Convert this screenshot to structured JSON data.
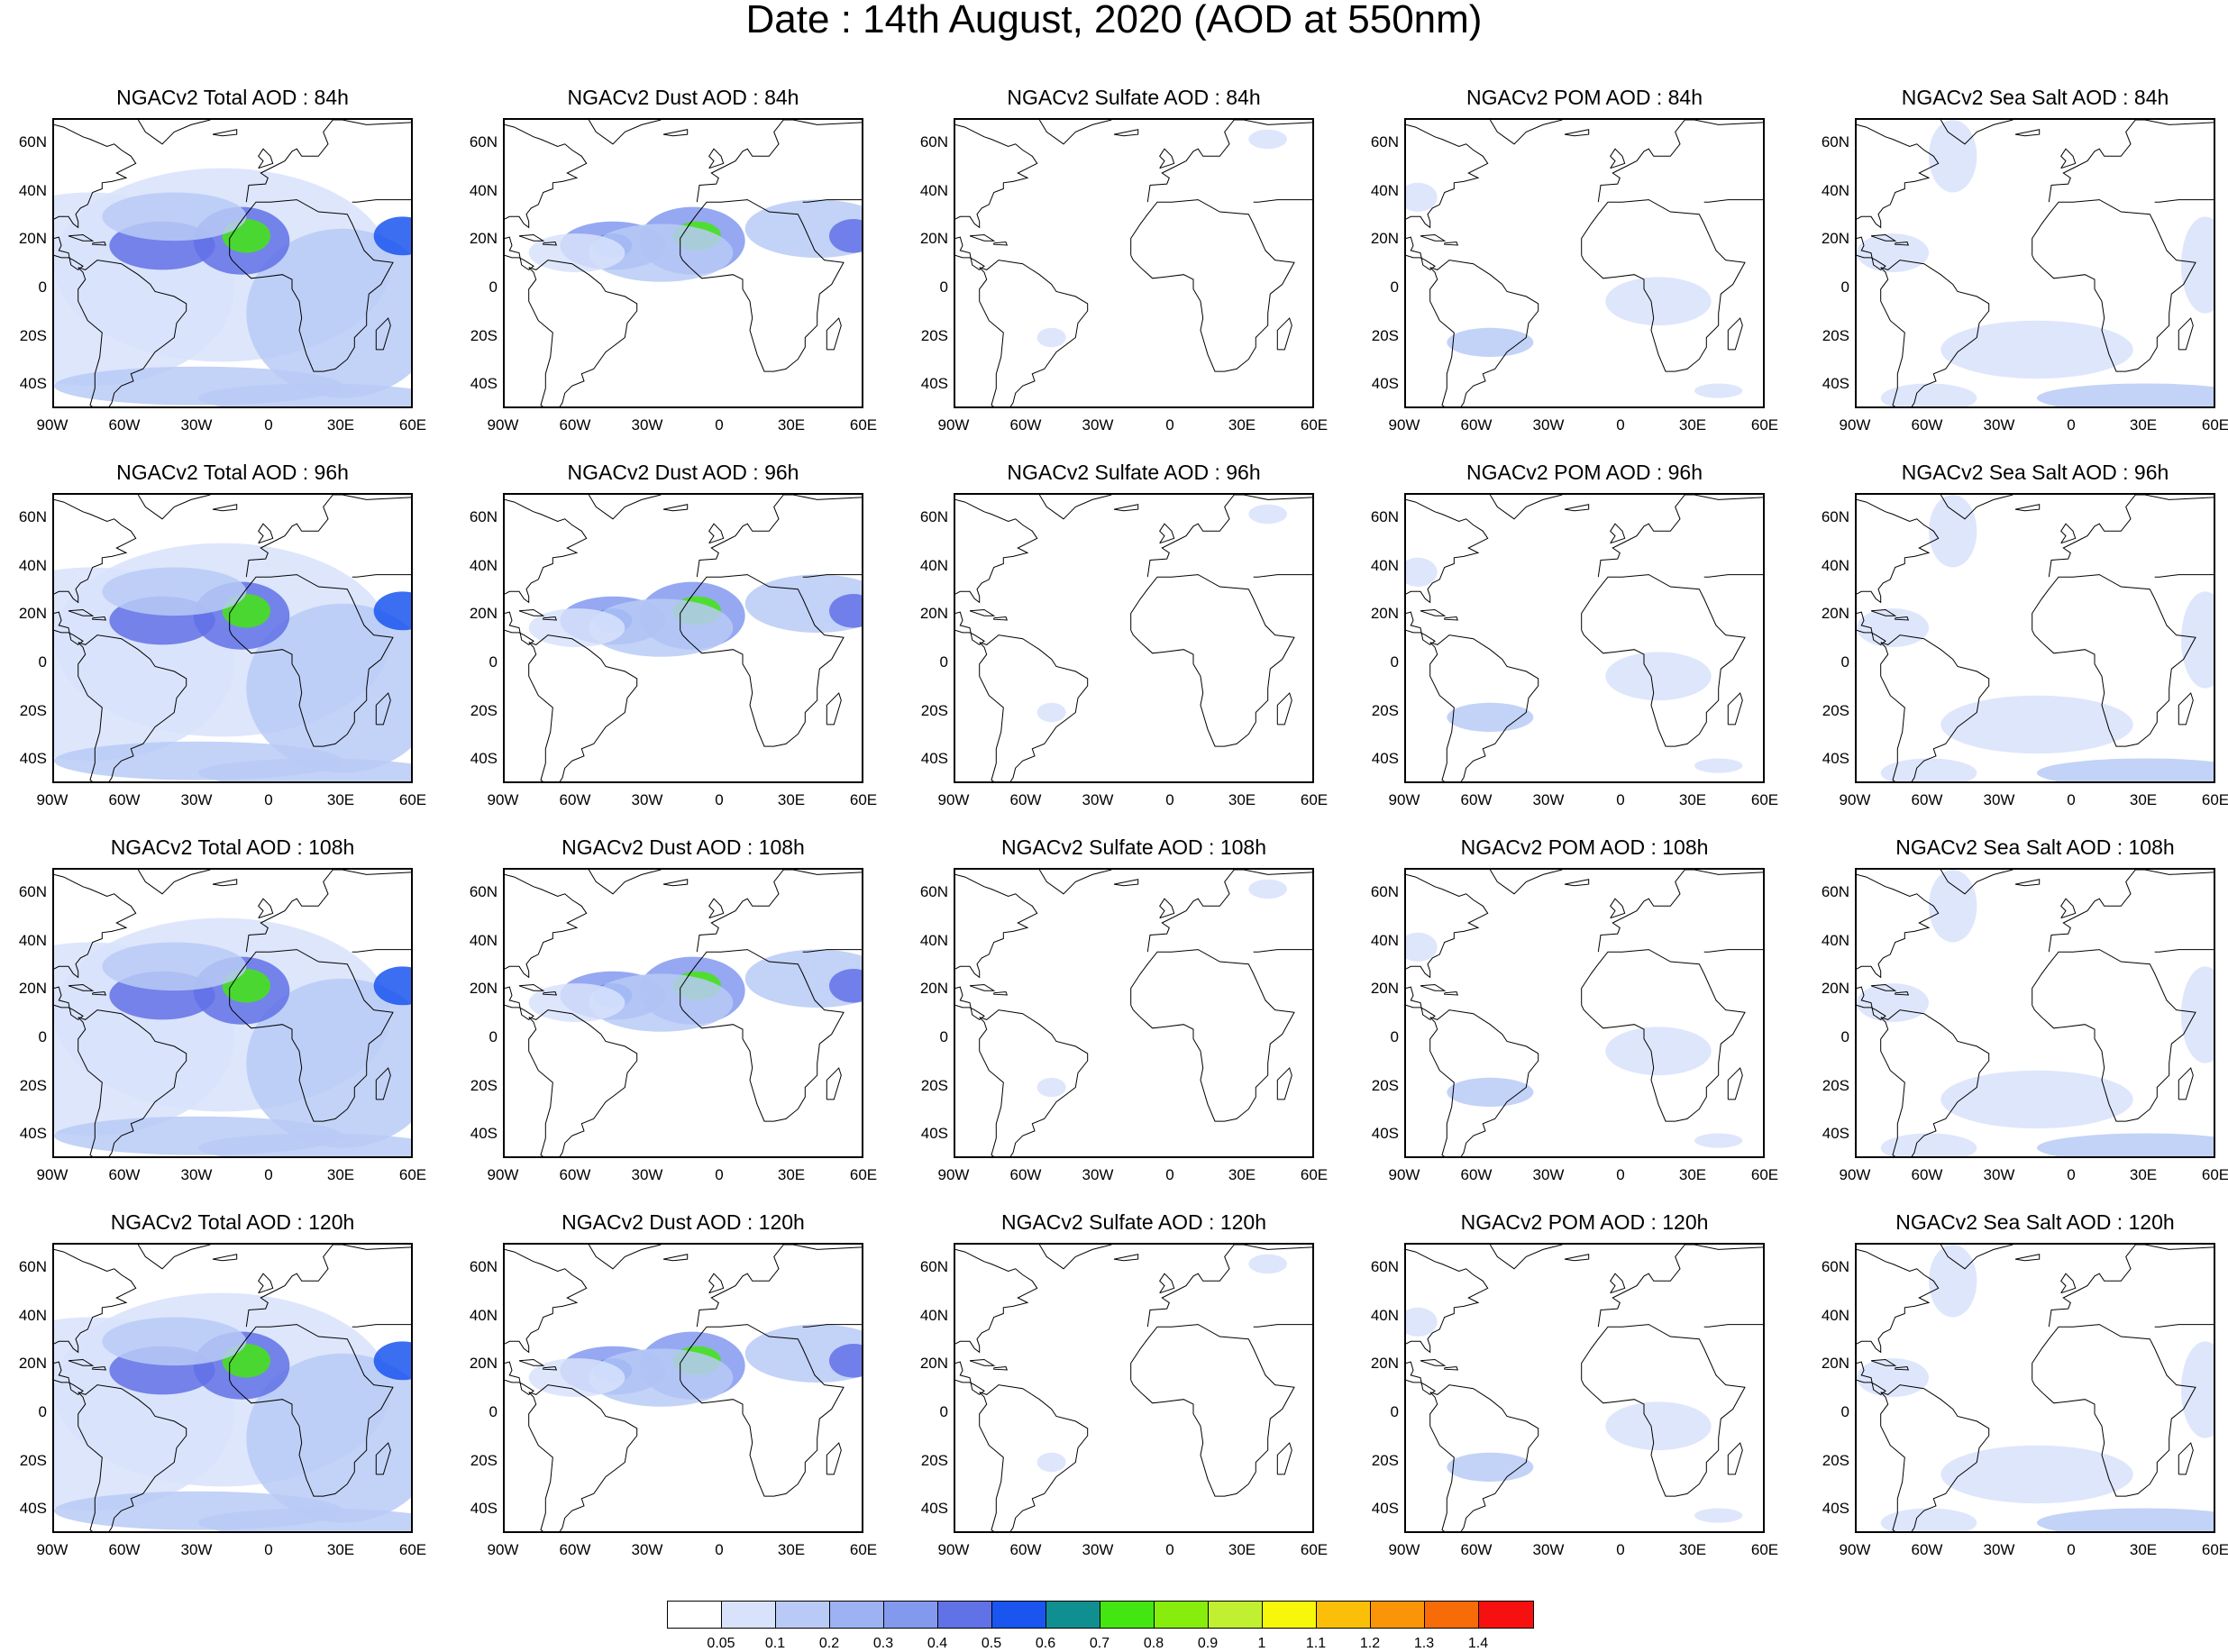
{
  "main_title": "Date : 14th August, 2020 (AOD at 550nm)",
  "rows": [
    {
      "hour": "84h",
      "titles": [
        "NGACv2 Total AOD : 84h",
        "NGACv2 Dust AOD : 84h",
        "NGACv2 Sulfate AOD : 84h",
        "NGACv2 POM AOD : 84h",
        "NGACv2 Sea Salt AOD : 84h"
      ]
    },
    {
      "hour": "96h",
      "titles": [
        "NGACv2 Total AOD : 96h",
        "NGACv2 Dust AOD : 96h",
        "NGACv2 Sulfate AOD : 96h",
        "NGACv2 POM AOD : 96h",
        "NGACv2 Sea Salt AOD : 96h"
      ]
    },
    {
      "hour": "108h",
      "titles": [
        "NGACv2 Total AOD : 108h",
        "NGACv2 Dust AOD : 108h",
        "NGACv2 Sulfate AOD : 108h",
        "NGACv2 POM AOD : 108h",
        "NGACv2 Sea Salt AOD : 108h"
      ]
    },
    {
      "hour": "120h",
      "titles": [
        "NGACv2 Total AOD : 120h",
        "NGACv2 Dust AOD : 120h",
        "NGACv2 Sulfate AOD : 120h",
        "NGACv2 POM AOD : 120h",
        "NGACv2 Sea Salt  AOD : 120h"
      ]
    }
  ],
  "species": [
    "total",
    "dust",
    "sulfate",
    "pom",
    "seasalt"
  ],
  "lat_ticks": [
    "60N",
    "40N",
    "20N",
    "0",
    "20S",
    "40S"
  ],
  "lon_ticks": [
    "90W",
    "60W",
    "30W",
    "0",
    "30E",
    "60E"
  ],
  "map_extent": {
    "lon": [
      -90,
      60
    ],
    "lat": [
      -50,
      70
    ]
  },
  "colorbar": {
    "labels": [
      "0.05",
      "0.1",
      "0.2",
      "0.3",
      "0.4",
      "0.5",
      "0.6",
      "0.7",
      "0.8",
      "0.9",
      "1",
      "1.1",
      "1.2",
      "1.3",
      "1.4"
    ],
    "colors": [
      "#ffffff",
      "#d8e2fb",
      "#b9caf6",
      "#9db2f2",
      "#8399ee",
      "#6171e6",
      "#1a55f0",
      "#0f8f8f",
      "#44e611",
      "#86ed0c",
      "#c0f030",
      "#f7f70a",
      "#fbbf0a",
      "#fb9508",
      "#f76b08",
      "#f71010"
    ]
  },
  "colors": {
    "land_outline": "#000000",
    "background": "#ffffff"
  }
}
